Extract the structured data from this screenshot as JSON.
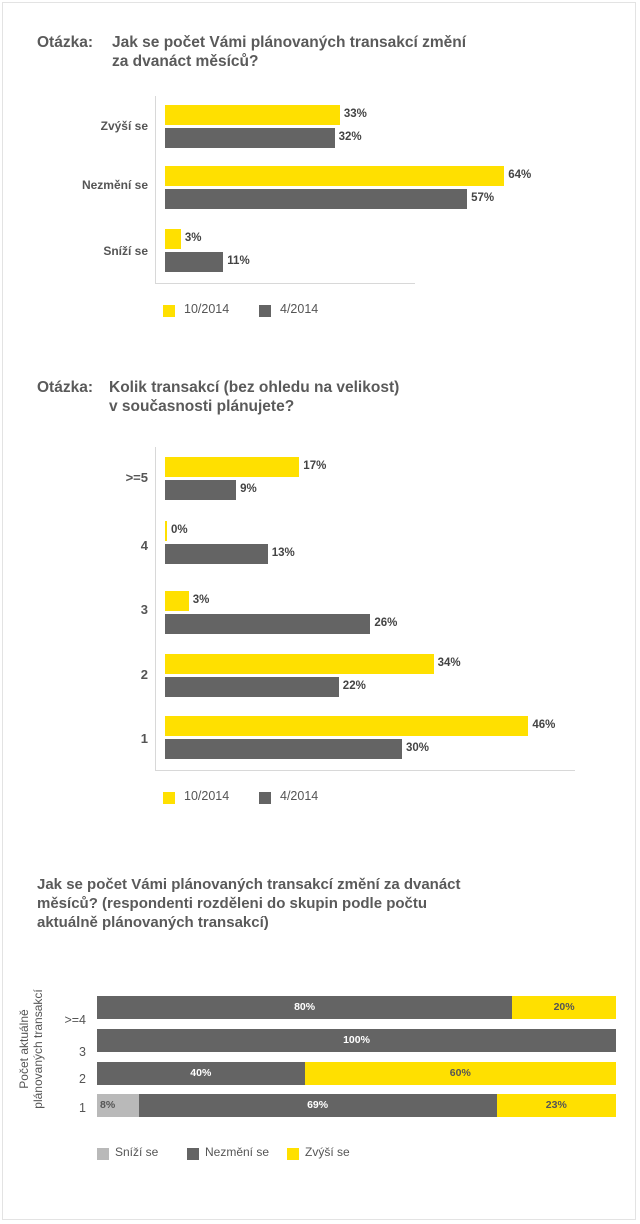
{
  "chart_data": [
    {
      "type": "bar",
      "orientation": "horizontal",
      "question_prefix": "Otázka:",
      "title_line1": "Jak se počet Vámi plánovaných transakcí změní",
      "title_line2": "za dvanáct měsíců?",
      "categories": [
        "Zvýší se",
        "Nezmění se",
        "Sníží se"
      ],
      "series": [
        {
          "name": "10/2014",
          "color": "#ffe000",
          "values": [
            33,
            64,
            3
          ],
          "labels": [
            "33%",
            "64%",
            "3%"
          ]
        },
        {
          "name": "4/2014",
          "color": "#646464",
          "values": [
            32,
            57,
            11
          ],
          "labels": [
            "32%",
            "57%",
            "11%"
          ]
        }
      ],
      "legend": "bottom-left"
    },
    {
      "type": "bar",
      "orientation": "horizontal",
      "question_prefix": "Otázka:",
      "title_line1": "Kolik transakcí (bez ohledu na velikost)",
      "title_line2": "v současnosti plánujete?",
      "categories": [
        ">=5",
        "4",
        "3",
        "2",
        "1"
      ],
      "series": [
        {
          "name": "10/2014",
          "color": "#ffe000",
          "values": [
            17,
            0,
            3,
            34,
            46
          ],
          "labels": [
            "17%",
            "0%",
            "3%",
            "34%",
            "46%"
          ]
        },
        {
          "name": "4/2014",
          "color": "#646464",
          "values": [
            9,
            13,
            26,
            22,
            30
          ],
          "labels": [
            "9%",
            "13%",
            "26%",
            "22%",
            "30%"
          ]
        }
      ],
      "legend": "bottom-left"
    },
    {
      "type": "bar",
      "orientation": "horizontal",
      "stacked": "percent",
      "title_line1": "Jak se počet Vámi plánovaných transakcí změní za dvanáct",
      "title_line2": "měsíců? (respondenti rozděleni do skupin podle počtu",
      "title_line3": "aktuálně plánovaných transakcí)",
      "ylabel_line1": "Počet aktuálně",
      "ylabel_line2": "plánovaných transakcí",
      "categories": [
        ">=4",
        "3",
        "2",
        "1"
      ],
      "series": [
        {
          "name": "Sníží se",
          "color": "#b9b9b9",
          "values": [
            0,
            0,
            0,
            8
          ],
          "labels": [
            "",
            "",
            "",
            "8%"
          ]
        },
        {
          "name": "Nezmění se",
          "color": "#646464",
          "values": [
            80,
            100,
            40,
            69
          ],
          "labels": [
            "80%",
            "100%",
            "40%",
            "69%"
          ]
        },
        {
          "name": "Zvýší se",
          "color": "#ffe000",
          "values": [
            20,
            0,
            60,
            23
          ],
          "labels": [
            "20%",
            "",
            "60%",
            "23%"
          ]
        }
      ],
      "xlim": [
        0,
        100
      ],
      "legend": "bottom-left"
    }
  ]
}
